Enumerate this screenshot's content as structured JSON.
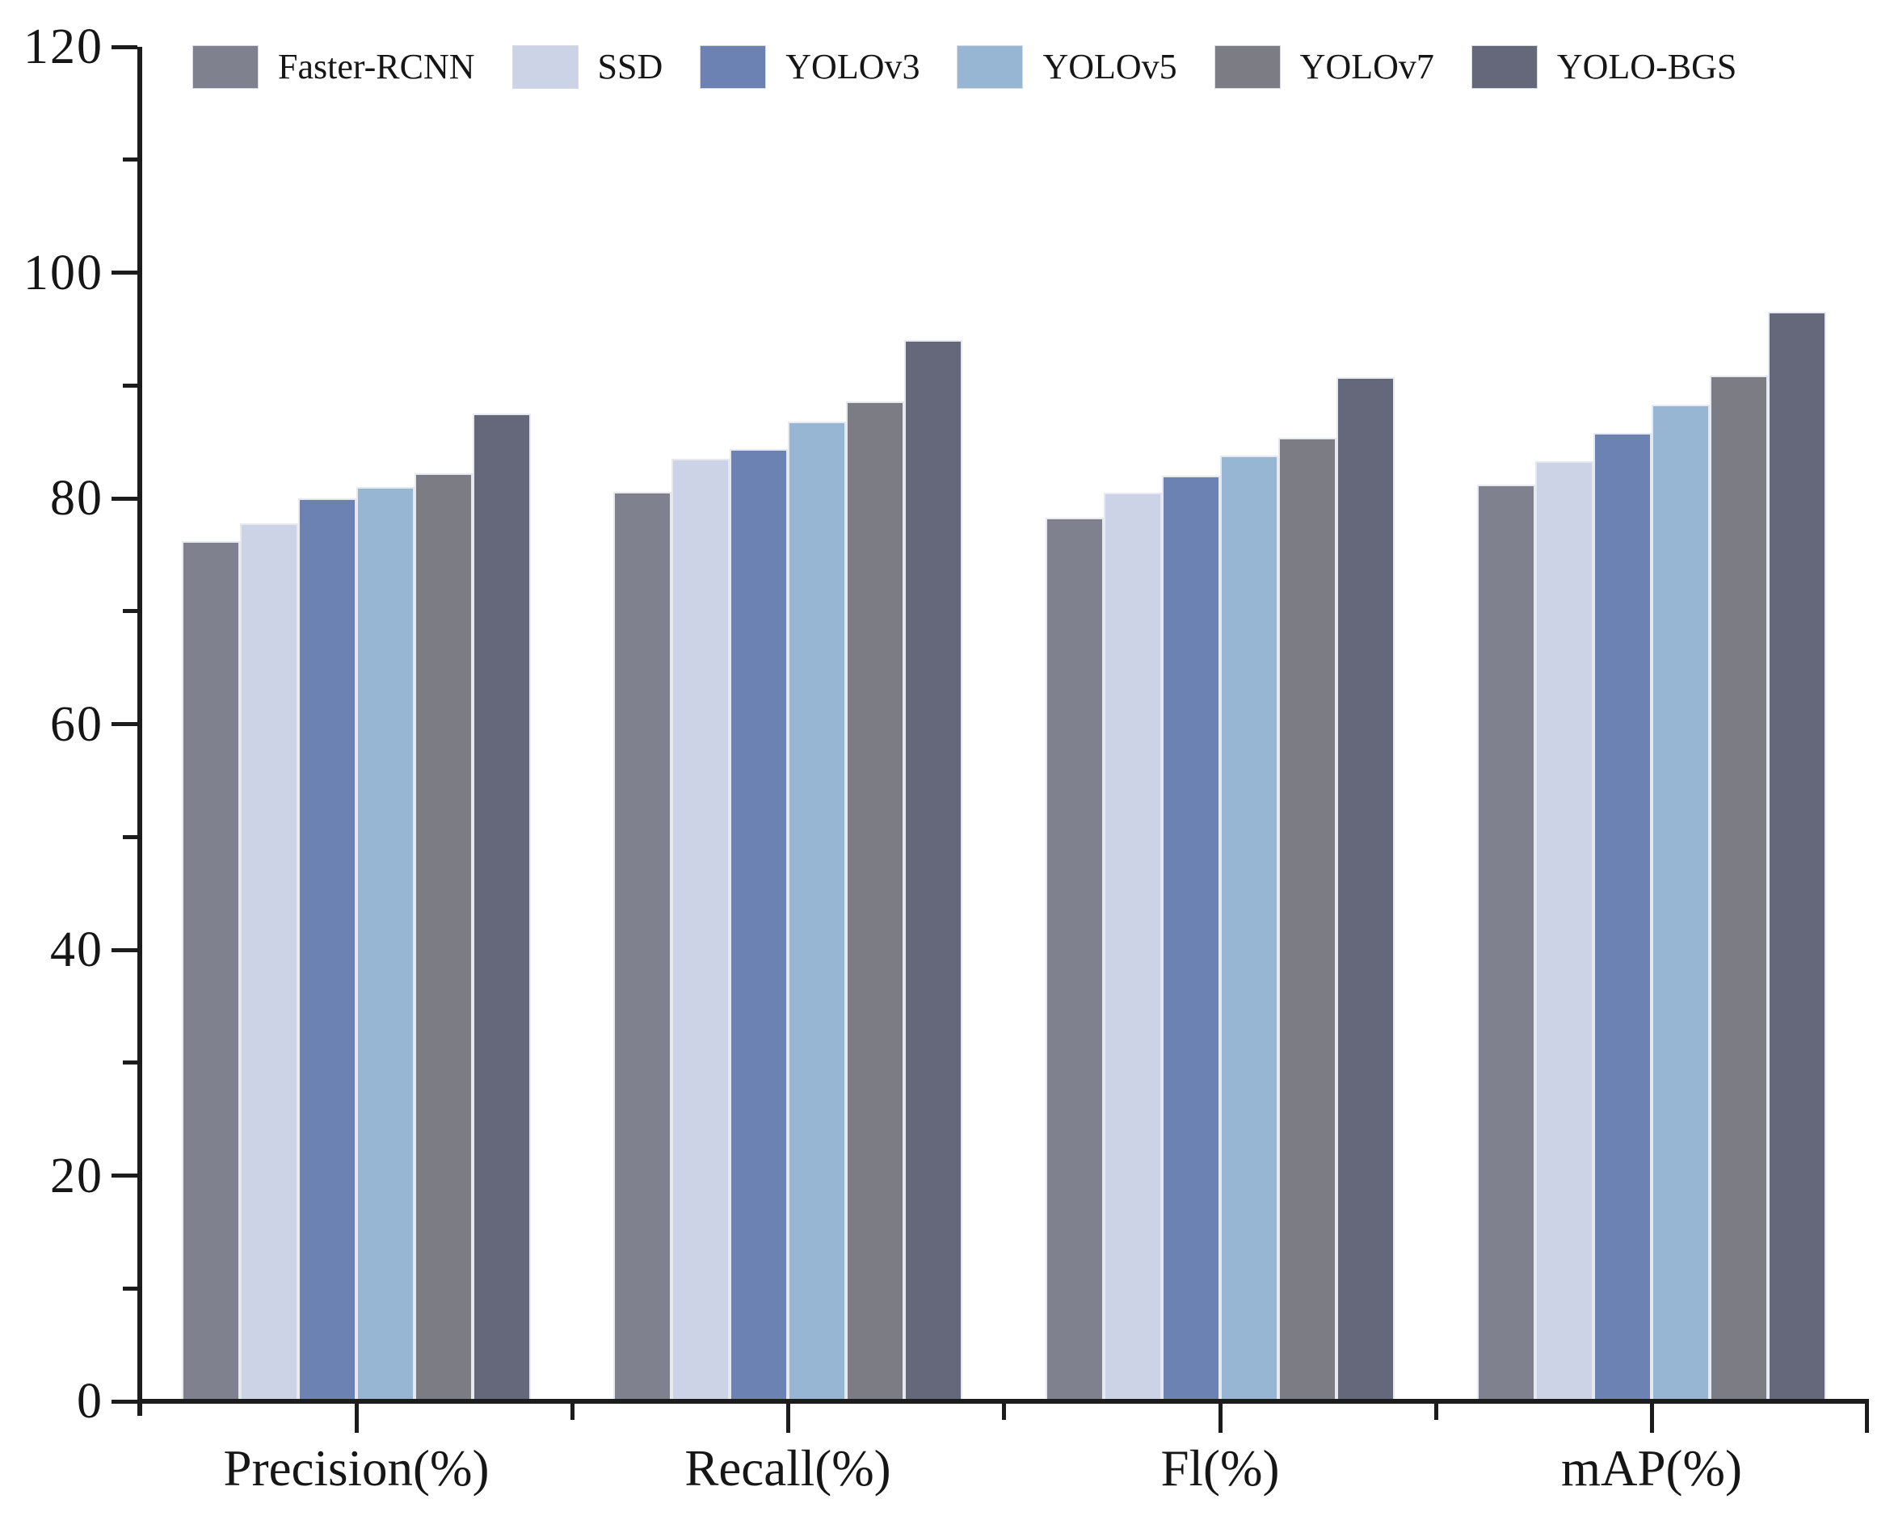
{
  "figure": {
    "background": "#ffffff",
    "axis_color": "#1c1c1c",
    "text_color": "#161616",
    "bar_edge_color": "#e7e9f0"
  },
  "chart_data": {
    "type": "bar",
    "title": "",
    "xlabel": "",
    "ylabel": "",
    "grid": false,
    "legend_position": "top",
    "ylim": [
      0,
      120
    ],
    "yticks_major": [
      0,
      20,
      40,
      60,
      80,
      100,
      120
    ],
    "yticks_minor": [
      10,
      30,
      50,
      70,
      90,
      110
    ],
    "categories": [
      "Precision(%)",
      "Recall(%)",
      "Fl(%)",
      "mAP(%)"
    ],
    "series": [
      {
        "name": "Faster-RCNN",
        "color": "#7f818f",
        "values": [
          76.2,
          80.6,
          78.3,
          81.2
        ]
      },
      {
        "name": "SSD",
        "color": "#cdd3e6",
        "values": [
          77.8,
          83.5,
          80.5,
          83.3
        ]
      },
      {
        "name": "YOLOv3",
        "color": "#6c82b2",
        "values": [
          80.0,
          84.4,
          82.0,
          85.8
        ]
      },
      {
        "name": "YOLOv5",
        "color": "#97b6d4",
        "values": [
          81.0,
          86.8,
          83.8,
          88.3
        ]
      },
      {
        "name": "YOLOv7",
        "color": "#7c7c84",
        "values": [
          82.2,
          88.6,
          85.4,
          90.9
        ]
      },
      {
        "name": "YOLO-BGS",
        "color": "#65687a",
        "values": [
          87.5,
          94.0,
          90.7,
          96.5
        ]
      }
    ]
  }
}
